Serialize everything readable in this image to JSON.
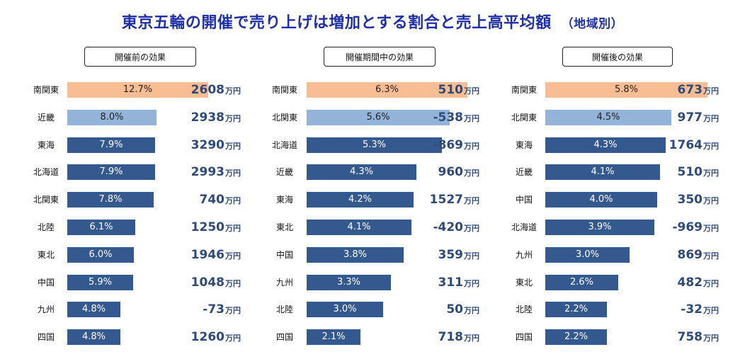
{
  "title": "東京五輪の開催で売り上げは増加とする割合と売上高平均額",
  "subtitle": "（地域別）",
  "unit_label": "万円",
  "colors": {
    "title": "#1f2fa8",
    "highlight_first": "#f9bd93",
    "highlight_second": "#93b3d9",
    "bar": "#34598e",
    "amount": "#2f4a78"
  },
  "chart_data": [
    {
      "type": "bar",
      "title": "開催前の効果",
      "series": [
        {
          "values": [
            12.7,
            8.0,
            7.9,
            7.9,
            7.8,
            6.1,
            6.0,
            5.9,
            4.8,
            4.8
          ]
        },
        {
          "values": [
            2608,
            2938,
            3290,
            2993,
            740,
            1250,
            1946,
            1048,
            -73,
            1260
          ]
        }
      ],
      "categories": [
        "南関東",
        "近畿",
        "東海",
        "北海道",
        "北関東",
        "北陸",
        "東北",
        "中国",
        "九州",
        "四国"
      ],
      "labels": [
        "12.7%",
        "8.0%",
        "7.9%",
        "7.9%",
        "7.8%",
        "6.1%",
        "6.0%",
        "5.9%",
        "4.8%",
        "4.8%"
      ]
    },
    {
      "type": "bar",
      "title": "開催期間中の効果",
      "series": [
        {
          "values": [
            6.3,
            5.6,
            5.3,
            4.3,
            4.2,
            4.1,
            3.8,
            3.3,
            3.0,
            2.1
          ]
        },
        {
          "values": [
            510,
            -538,
            -869,
            960,
            1527,
            -420,
            359,
            311,
            50,
            718
          ]
        }
      ],
      "categories": [
        "南関東",
        "北関東",
        "北海道",
        "近畿",
        "東海",
        "東北",
        "中国",
        "九州",
        "北陸",
        "四国"
      ],
      "labels": [
        "6.3%",
        "5.6%",
        "5.3%",
        "4.3%",
        "4.2%",
        "4.1%",
        "3.8%",
        "3.3%",
        "3.0%",
        "2.1%"
      ]
    },
    {
      "type": "bar",
      "title": "開催後の効果",
      "series": [
        {
          "values": [
            5.8,
            4.5,
            4.3,
            4.1,
            4.0,
            3.9,
            3.0,
            2.6,
            2.2,
            2.2
          ]
        },
        {
          "values": [
            673,
            977,
            1764,
            510,
            350,
            -969,
            869,
            482,
            -32,
            758
          ]
        }
      ],
      "categories": [
        "南関東",
        "北関東",
        "東海",
        "近畿",
        "中国",
        "北海道",
        "九州",
        "東北",
        "北陸",
        "四国"
      ],
      "labels": [
        "5.8%",
        "4.5%",
        "4.3%",
        "4.1%",
        "4.0%",
        "3.9%",
        "3.0%",
        "2.6%",
        "2.2%",
        "2.2%"
      ]
    }
  ]
}
